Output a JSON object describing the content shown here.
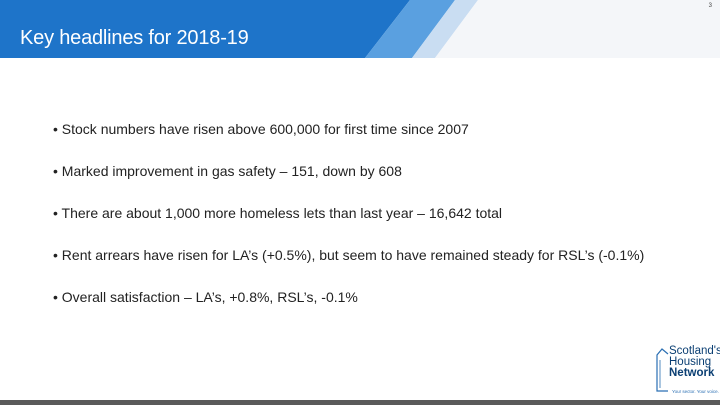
{
  "slide": {
    "title": "Key headlines for 2018-19",
    "page_number": "3",
    "bullets": [
      "• Stock numbers have risen above 600,000 for first time since 2007",
      "• Marked improvement in gas safety – 151, down by 608",
      "• There are about 1,000 more homeless lets than last year – 16,642 total",
      "• Rent arrears have risen for LA’s (+0.5%), but seem to have remained steady for RSL’s (-0.1%)",
      "• Overall satisfaction – LA’s, +0.8%, RSL’s, -0.1%"
    ]
  },
  "logo": {
    "line1": "Scotland's",
    "line2": "Housing",
    "line3": "Network",
    "tagline": "Your sector. Your voice."
  },
  "colors": {
    "title_band": "#1e74c9",
    "title_band_light": "#5aa0e0",
    "bottom_bar": "#5a5a5a",
    "logo_text": "#0b3f73"
  }
}
